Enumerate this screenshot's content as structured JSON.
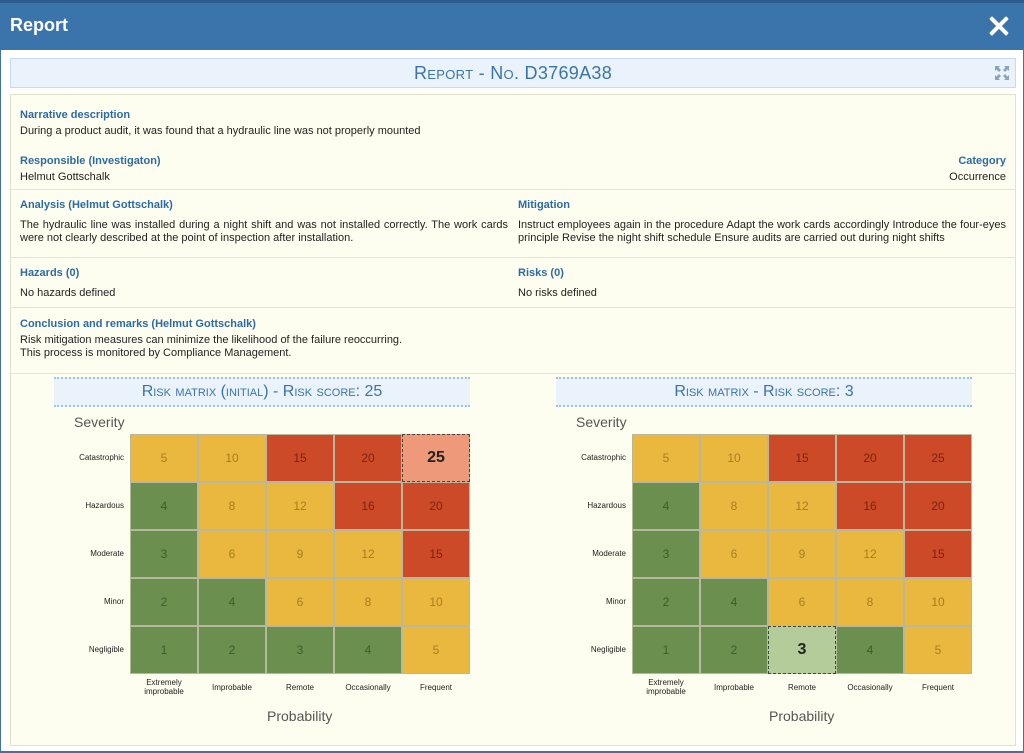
{
  "window": {
    "title": "Report"
  },
  "report": {
    "title": "Report - No. D3769A38"
  },
  "narrative": {
    "label": "Narrative description",
    "text": "During a product audit, it was found that a hydraulic line was not properly mounted"
  },
  "responsible": {
    "label": "Responsible (Investigaton)",
    "value": "Helmut Gottschalk"
  },
  "category": {
    "label": "Category",
    "value": "Occurrence"
  },
  "analysis": {
    "label": "Analysis (Helmut Gottschalk)",
    "text": "The hydraulic line was installed during a night shift and was not installed correctly. The work cards were not clearly described at the point of inspection after installation."
  },
  "mitigation": {
    "label": "Mitigation",
    "text": "Instruct employees again in the procedure Adapt the work cards accordingly Introduce the four-eyes principle Revise the night shift schedule Ensure audits are carried out during night shifts"
  },
  "hazards": {
    "label": "Hazards (0)",
    "text": "No hazards defined"
  },
  "risks": {
    "label": "Risks (0)",
    "text": "No risks defined"
  },
  "conclusion": {
    "label": "Conclusion and remarks (Helmut Gottschalk)",
    "line1": "Risk mitigation measures can minimize the likelihood of the failure reoccurring.",
    "line2": "This process is monitored by Compliance Management."
  },
  "matrices": [
    {
      "title": "Risk matrix (initial) - Risk score: 25",
      "selected": [
        0,
        4
      ]
    },
    {
      "title": "Risk matrix - Risk score: 3",
      "selected": [
        4,
        2
      ]
    }
  ],
  "severity_label": "Severity",
  "probability_label": "Probability",
  "severity_levels": [
    "Catastrophic",
    "Hazardous",
    "Moderate",
    "Minor",
    "Negligible"
  ],
  "probability_levels": [
    "Extremely improbable",
    "Improbable",
    "Remote",
    "Occasionally",
    "Frequent"
  ],
  "cell_values": [
    [
      5,
      10,
      15,
      20,
      25
    ],
    [
      4,
      8,
      12,
      16,
      20
    ],
    [
      3,
      6,
      9,
      12,
      15
    ],
    [
      2,
      4,
      6,
      8,
      10
    ],
    [
      1,
      2,
      3,
      4,
      5
    ]
  ],
  "cell_levels": [
    [
      "y",
      "y",
      "r",
      "r",
      "r"
    ],
    [
      "g",
      "y",
      "y",
      "r",
      "r"
    ],
    [
      "g",
      "y",
      "y",
      "y",
      "r"
    ],
    [
      "g",
      "g",
      "y",
      "y",
      "y"
    ],
    [
      "g",
      "g",
      "g",
      "g",
      "y"
    ]
  ],
  "colors": {
    "g": "#6b8f4e",
    "y": "#eab83f",
    "r": "#cc4a28",
    "g_text": "#3f5a2e",
    "y_text": "#a77d1e",
    "r_text": "#7a2410",
    "g_sel": "#b3cc9a",
    "y_sel": "#f3d27e",
    "r_sel": "#ee9a7a"
  }
}
